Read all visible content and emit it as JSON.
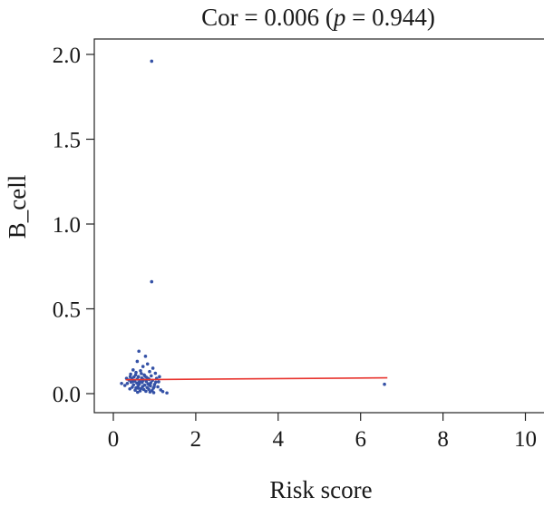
{
  "chart_data": {
    "type": "scatter",
    "title": "Cor = 0.006 (p = 0.944)",
    "title_parts": {
      "prefix": "Cor = 0.006 (",
      "p_symbol": "p",
      "suffix": " = 0.944)"
    },
    "xlabel": "Risk score",
    "ylabel": "B_cell",
    "xlim": [
      0,
      10
    ],
    "ylim": [
      0,
      2.0
    ],
    "x_ticks": [
      0,
      2,
      4,
      6,
      8,
      10
    ],
    "y_ticks": [
      0.0,
      0.5,
      1.0,
      1.5,
      2.0
    ],
    "x_tick_labels": [
      "0",
      "2",
      "4",
      "6",
      "8",
      "10"
    ],
    "y_tick_labels": [
      "0.0",
      "0.5",
      "1.0",
      "1.5",
      "2.0"
    ],
    "grid": false,
    "point_color": "#3451a6",
    "line_color": "#e8342e",
    "regression_line": {
      "x": [
        0.3,
        6.65
      ],
      "y": [
        0.082,
        0.093
      ]
    },
    "points": [
      {
        "x": 0.93,
        "y": 1.96
      },
      {
        "x": 0.93,
        "y": 0.66
      },
      {
        "x": 6.58,
        "y": 0.055
      },
      {
        "x": 0.62,
        "y": 0.25
      },
      {
        "x": 0.78,
        "y": 0.22
      },
      {
        "x": 0.58,
        "y": 0.19
      },
      {
        "x": 0.83,
        "y": 0.175
      },
      {
        "x": 0.72,
        "y": 0.16
      },
      {
        "x": 0.96,
        "y": 0.15
      },
      {
        "x": 0.48,
        "y": 0.14
      },
      {
        "x": 0.66,
        "y": 0.135
      },
      {
        "x": 0.88,
        "y": 0.13
      },
      {
        "x": 0.55,
        "y": 0.125
      },
      {
        "x": 1.02,
        "y": 0.12
      },
      {
        "x": 0.42,
        "y": 0.115
      },
      {
        "x": 0.75,
        "y": 0.11
      },
      {
        "x": 0.92,
        "y": 0.105
      },
      {
        "x": 0.61,
        "y": 0.1
      },
      {
        "x": 0.5,
        "y": 0.098
      },
      {
        "x": 0.81,
        "y": 0.095
      },
      {
        "x": 0.69,
        "y": 0.092
      },
      {
        "x": 1.05,
        "y": 0.09
      },
      {
        "x": 0.45,
        "y": 0.088
      },
      {
        "x": 0.58,
        "y": 0.086
      },
      {
        "x": 0.87,
        "y": 0.084
      },
      {
        "x": 0.73,
        "y": 0.082
      },
      {
        "x": 0.38,
        "y": 0.08
      },
      {
        "x": 0.95,
        "y": 0.078
      },
      {
        "x": 0.64,
        "y": 0.076
      },
      {
        "x": 0.52,
        "y": 0.074
      },
      {
        "x": 0.8,
        "y": 0.072
      },
      {
        "x": 1.1,
        "y": 0.07
      },
      {
        "x": 0.43,
        "y": 0.068
      },
      {
        "x": 0.7,
        "y": 0.066
      },
      {
        "x": 0.91,
        "y": 0.064
      },
      {
        "x": 0.57,
        "y": 0.062
      },
      {
        "x": 0.34,
        "y": 0.06
      },
      {
        "x": 0.84,
        "y": 0.058
      },
      {
        "x": 0.63,
        "y": 0.056
      },
      {
        "x": 1.0,
        "y": 0.054
      },
      {
        "x": 0.49,
        "y": 0.052
      },
      {
        "x": 0.76,
        "y": 0.05
      },
      {
        "x": 0.28,
        "y": 0.048
      },
      {
        "x": 0.9,
        "y": 0.046
      },
      {
        "x": 0.6,
        "y": 0.044
      },
      {
        "x": 0.71,
        "y": 0.042
      },
      {
        "x": 1.08,
        "y": 0.04
      },
      {
        "x": 0.46,
        "y": 0.038
      },
      {
        "x": 0.82,
        "y": 0.036
      },
      {
        "x": 0.55,
        "y": 0.034
      },
      {
        "x": 0.97,
        "y": 0.032
      },
      {
        "x": 0.67,
        "y": 0.03
      },
      {
        "x": 0.4,
        "y": 0.028
      },
      {
        "x": 0.86,
        "y": 0.026
      },
      {
        "x": 0.74,
        "y": 0.024
      },
      {
        "x": 1.15,
        "y": 0.022
      },
      {
        "x": 0.53,
        "y": 0.02
      },
      {
        "x": 0.94,
        "y": 0.018
      },
      {
        "x": 0.65,
        "y": 0.016
      },
      {
        "x": 0.79,
        "y": 0.014
      },
      {
        "x": 1.2,
        "y": 0.012
      },
      {
        "x": 0.89,
        "y": 0.01
      },
      {
        "x": 0.59,
        "y": 0.008
      },
      {
        "x": 0.98,
        "y": 0.006
      },
      {
        "x": 1.3,
        "y": 0.004
      },
      {
        "x": 0.2,
        "y": 0.06
      },
      {
        "x": 0.32,
        "y": 0.09
      },
      {
        "x": 0.68,
        "y": 0.118
      },
      {
        "x": 0.77,
        "y": 0.102
      },
      {
        "x": 0.85,
        "y": 0.088
      },
      {
        "x": 1.12,
        "y": 0.1
      },
      {
        "x": 0.47,
        "y": 0.072
      },
      {
        "x": 0.62,
        "y": 0.066
      },
      {
        "x": 0.99,
        "y": 0.04
      },
      {
        "x": 0.54,
        "y": 0.11
      },
      {
        "x": 0.72,
        "y": 0.078
      },
      {
        "x": 0.88,
        "y": 0.05
      },
      {
        "x": 1.03,
        "y": 0.068
      },
      {
        "x": 0.41,
        "y": 0.1
      },
      {
        "x": 0.6,
        "y": 0.032
      }
    ]
  }
}
